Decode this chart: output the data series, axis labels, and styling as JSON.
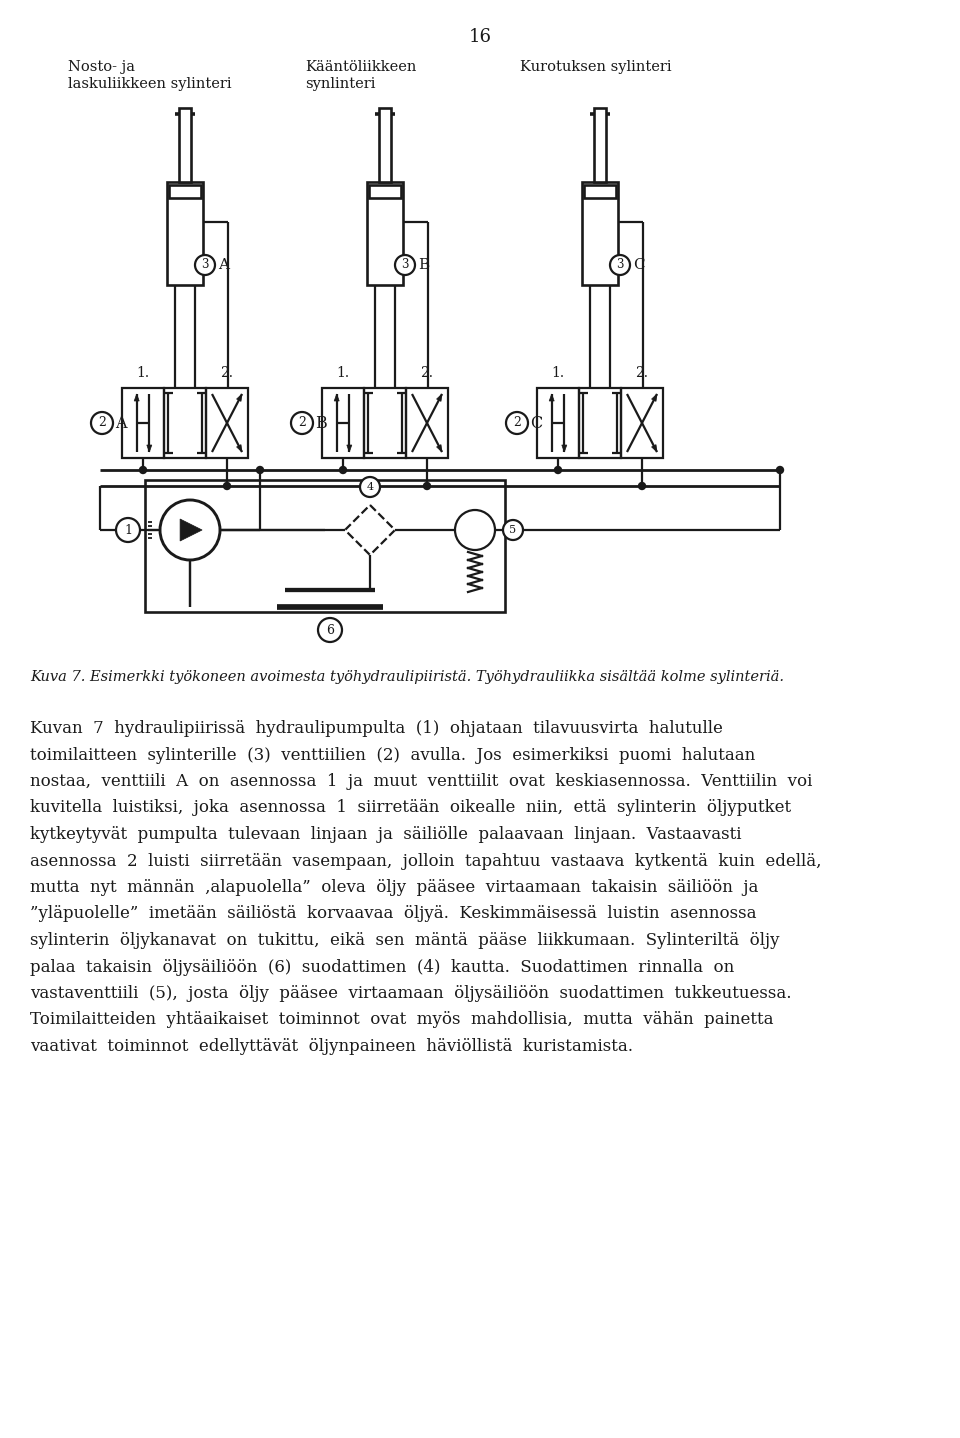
{
  "page_number": "16",
  "bg_color": "#ffffff",
  "line_color": "#1a1a1a",
  "figure_caption": "Kuva 7. Esimerkki työkoneen avoimesta työhydraulipiiristä. Työhydrauliikka sisältää kolme sylinteria.",
  "body_paragraphs": [
    "Kuvan 7 hydraulipiirissä hydraulipumpulta (1) ohjataan tilavuusvirta halutulle toimilaitteen sylinterille (3) venttiilien (2) avulla. Jos esimerkiksi puomi halutaan nostaa, venttiili A on asennossa 1 ja muut venttiilit ovat keskiasennossa. Venttiilin voi kuvitella luistiksi, joka asennossa 1 siirretään oikealle niin, että sylinterin öljyputket kytkeytyvat pumpulta tulevaan linjaan ja säiliölle palaavaan linjaan. Vastaavasti asennossa 2 luisti siirretään vasempaan, jolloin tapahtuu vastaava kytkentä kuin edellä, mutta nyt männän ‚alapuolella” oleva öljy pääsee virtaamaan takaisin säiliöön ja ”ylaputolelle” imetään säiliöstä korvaavaa öljyä. Keskimmäisessä luistin asennossa sylinterin öljykanavat on tukittu, eikä sen mäntä pääse liikkumaan. Sylinteriltä öljy palaa takaisin öljysäiliöön (6) suodattimen (4) kautta. Suodattimen rinnalla on vastaventtiili (5), josta öljy pääsee virtaamaan öljysäiliöön suodattimen tukkeutuessa. Toimilaitteiden yhtäaikaiset toiminnot ovat myös mahdollisia, mutta vähän painetta vaativat toiminnot edellyttavät öljynpaineen häviöllistä kuristamista."
  ],
  "font_size_body": 13.5,
  "font_size_caption": 11.0,
  "font_size_title": 12.0
}
